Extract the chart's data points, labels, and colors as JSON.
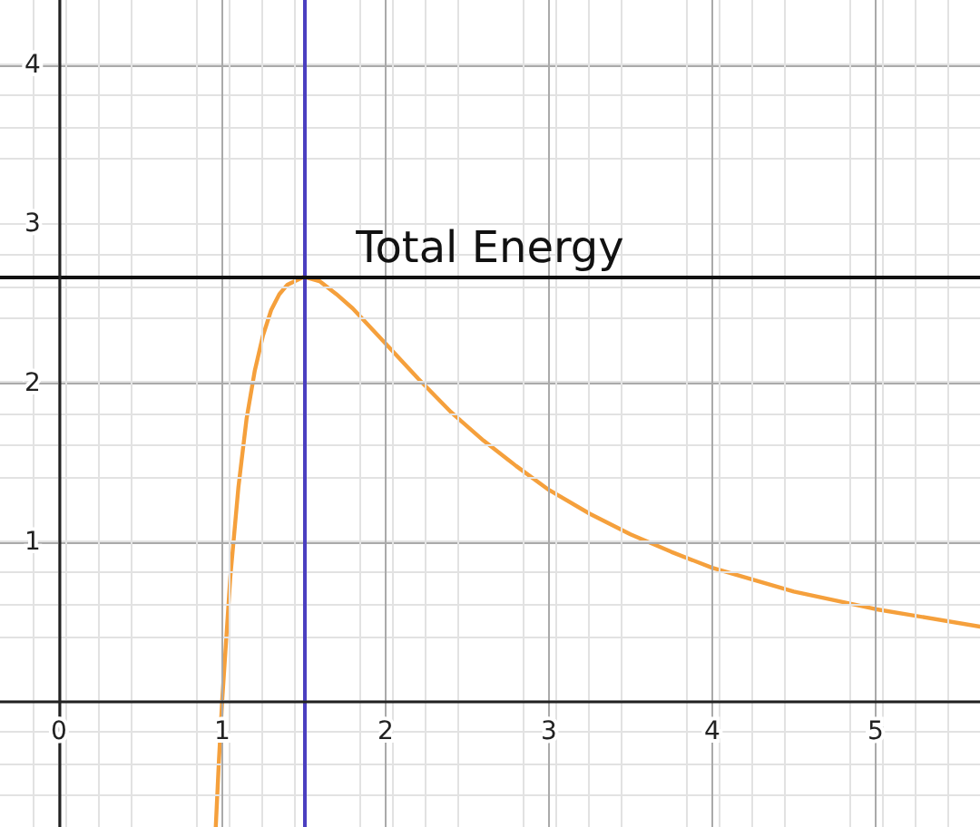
{
  "chart_data": {
    "type": "line",
    "x": [
      0.961,
      0.98,
      1.0,
      1.05,
      1.1,
      1.15,
      1.2,
      1.25,
      1.3,
      1.35,
      1.4,
      1.5,
      1.6,
      1.7,
      1.8,
      2.0,
      2.2,
      2.4,
      2.6,
      2.8,
      3.0,
      3.25,
      3.5,
      3.75,
      4.0,
      4.5,
      5.0,
      5.64
    ],
    "series": [
      {
        "color": "#f5a03c",
        "values": [
          -0.79,
          -0.38,
          0,
          0.78,
          1.35,
          1.78,
          2.08,
          2.3,
          2.46,
          2.56,
          2.62,
          2.67,
          2.64,
          2.56,
          2.47,
          2.25,
          2.03,
          1.82,
          1.64,
          1.48,
          1.33,
          1.18,
          1.05,
          0.94,
          0.84,
          0.69,
          0.58,
          0.47
        ]
      }
    ],
    "xlim": [
      -0.36,
      5.64
    ],
    "ylim": [
      -0.79,
      4.41
    ],
    "xticks": [
      0,
      1,
      2,
      3,
      4,
      5
    ],
    "yticks": [
      {
        "value": 0,
        "label": null
      },
      1,
      2,
      3,
      4
    ],
    "ref_lines": [
      {
        "axis": "x",
        "value": 1.5,
        "label": null,
        "color": "#4b3fc0"
      },
      {
        "axis": "y",
        "value": 2.67,
        "label": "Total Energy",
        "color": "#111111"
      }
    ],
    "grid": true,
    "marker": "none",
    "line_style": "solid"
  }
}
